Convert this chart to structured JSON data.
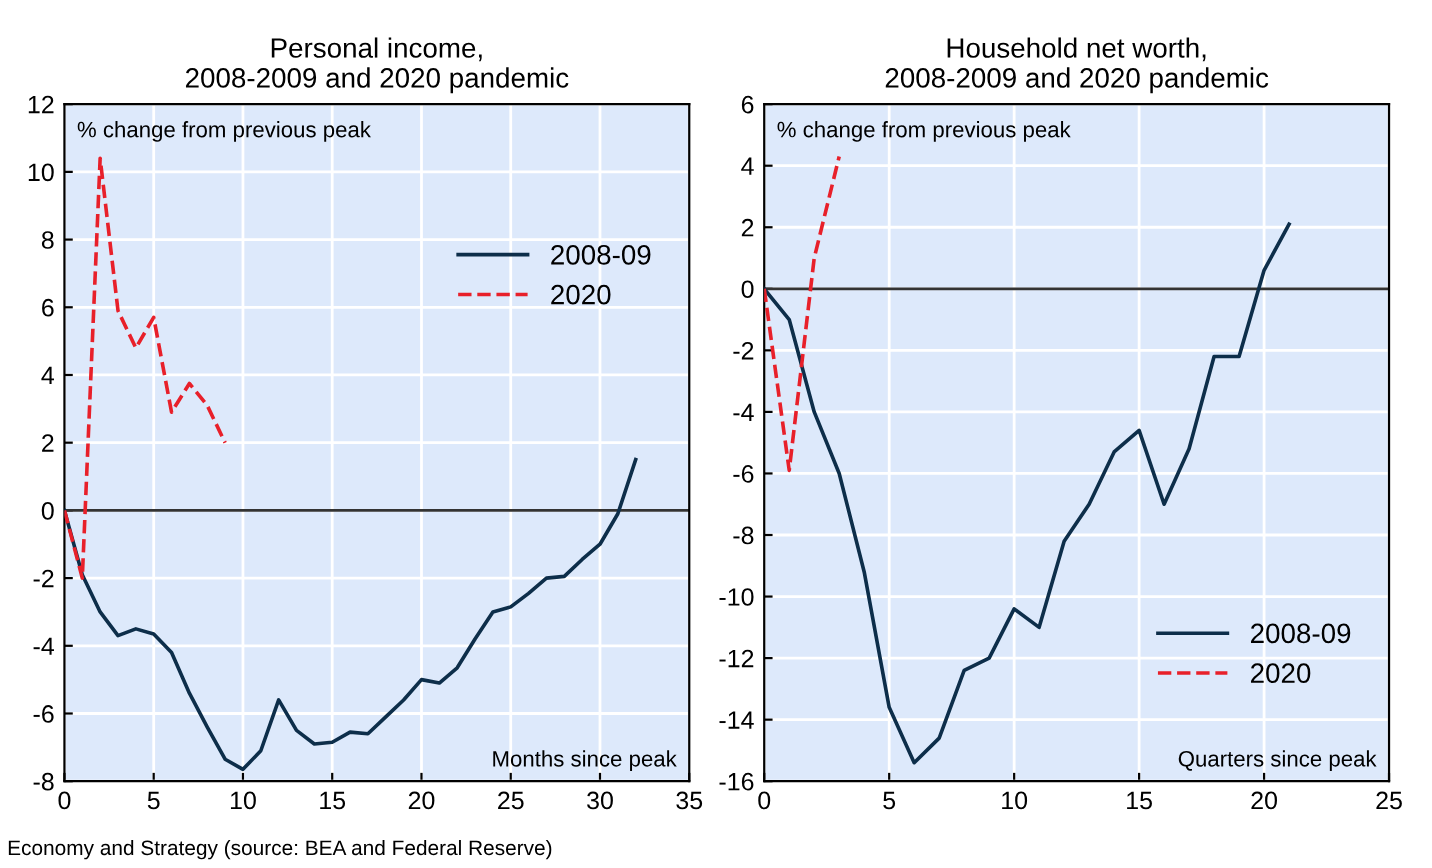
{
  "chart_data": [
    {
      "type": "line",
      "title": "Personal income,\n2008-2009 and 2020 pandemic",
      "ylabel": "% change from previous peak",
      "xlabel": "Months since peak",
      "series": [
        {
          "name": "2008-09",
          "color": "#0d2e4a",
          "line_style": "solid",
          "x": [
            0,
            1,
            2,
            3,
            4,
            5,
            6,
            7,
            8,
            9,
            10,
            11,
            12,
            13,
            14,
            15,
            16,
            17,
            18,
            19,
            20,
            21,
            22,
            23,
            24,
            25,
            26,
            27,
            28,
            29,
            30,
            31,
            32
          ],
          "values": [
            0,
            -1.9,
            -3.0,
            -3.7,
            -3.5,
            -3.65,
            -4.2,
            -5.4,
            -6.4,
            -7.35,
            -7.65,
            -7.1,
            -5.6,
            -6.5,
            -6.9,
            -6.85,
            -6.55,
            -6.6,
            -6.1,
            -5.6,
            -5.0,
            -5.1,
            -4.65,
            -3.8,
            -3.0,
            -2.85,
            -2.45,
            -2.0,
            -1.95,
            -1.45,
            -1.0,
            -0.1,
            1.5
          ]
        },
        {
          "name": "2020",
          "color": "#e8202a",
          "line_style": "dashed",
          "x": [
            0,
            1,
            2,
            3,
            4,
            5,
            6,
            7,
            8,
            9
          ],
          "values": [
            0,
            -2.0,
            10.4,
            5.9,
            4.8,
            5.7,
            2.9,
            3.75,
            3.1,
            2.0
          ]
        }
      ],
      "xlim": [
        0,
        35
      ],
      "xticks": [
        0,
        5,
        10,
        15,
        20,
        25,
        30,
        35
      ],
      "ylim": [
        -8,
        12
      ],
      "yticks": [
        -8,
        -6,
        -4,
        -2,
        0,
        2,
        4,
        6,
        8,
        10,
        12
      ],
      "ref_lines": [
        {
          "axis": "y",
          "value": 0,
          "color": "#333333"
        }
      ],
      "grid": true,
      "legend": "top right",
      "marker": "none",
      "annotations": [
        "Economy and Strategy (source: BEA and Federal Reserve)"
      ]
    },
    {
      "type": "line",
      "title": "Household net worth,\n2008-2009 and 2020 pandemic",
      "ylabel": "% change from previous peak",
      "xlabel": "Quarters since peak",
      "series": [
        {
          "name": "2008-09",
          "color": "#0d2e4a",
          "line_style": "solid",
          "x": [
            0,
            1,
            2,
            3,
            4,
            5,
            6,
            7,
            8,
            9,
            10,
            11,
            12,
            13,
            14,
            15,
            16,
            17,
            18,
            19,
            20,
            21
          ],
          "values": [
            0,
            -1.0,
            -4.0,
            -6.0,
            -9.2,
            -13.6,
            -15.4,
            -14.6,
            -12.4,
            -12.0,
            -10.4,
            -11.0,
            -8.2,
            -7.0,
            -5.3,
            -4.6,
            -7.0,
            -5.2,
            -2.2,
            -2.2,
            0.6,
            2.1
          ]
        },
        {
          "name": "2020",
          "color": "#e8202a",
          "line_style": "dashed",
          "x": [
            0,
            1,
            2,
            3
          ],
          "values": [
            0,
            -5.9,
            1.0,
            4.3
          ]
        }
      ],
      "xlim": [
        0,
        25
      ],
      "xticks": [
        0,
        5,
        10,
        15,
        20,
        25
      ],
      "ylim": [
        -16,
        6
      ],
      "yticks": [
        -16,
        -14,
        -12,
        -10,
        -8,
        -6,
        -4,
        -2,
        0,
        2,
        4,
        6
      ],
      "ref_lines": [
        {
          "axis": "y",
          "value": 0,
          "color": "#333333"
        }
      ],
      "grid": true,
      "legend": "bottom right",
      "marker": "none"
    }
  ]
}
